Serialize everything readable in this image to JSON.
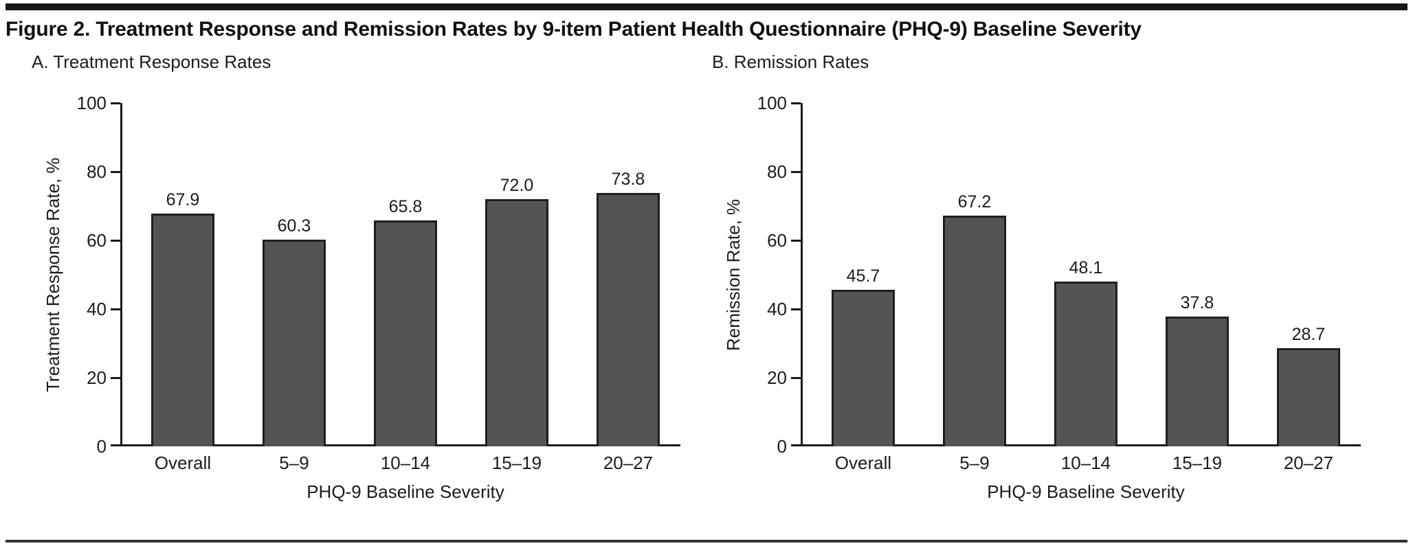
{
  "figure": {
    "title": "Figure 2. Treatment Response and Remission Rates by 9-item Patient Health Questionnaire (PHQ-9) Baseline Severity"
  },
  "colors": {
    "bar_fill": "#545454",
    "bar_border": "#1f1f1f",
    "axis": "#1a1a1a",
    "text": "#1c1c1c"
  },
  "chart_data": [
    {
      "type": "bar",
      "panel_label": "A. Treatment Response Rates",
      "categories": [
        "Overall",
        "5–9",
        "10–14",
        "15–19",
        "20–27"
      ],
      "values": [
        67.9,
        60.3,
        65.8,
        72.0,
        73.8
      ],
      "bar_labels": [
        "67.9",
        "60.3",
        "65.8",
        "72.0",
        "73.8"
      ],
      "xlabel": "PHQ-9 Baseline Severity",
      "ylabel": "Treatment Response Rate, %",
      "ylim": [
        0,
        100
      ],
      "yticks": [
        0,
        20,
        40,
        60,
        80,
        100
      ],
      "grid": false,
      "legend": null
    },
    {
      "type": "bar",
      "panel_label": "B. Remission Rates",
      "categories": [
        "Overall",
        "5–9",
        "10–14",
        "15–19",
        "20–27"
      ],
      "values": [
        45.7,
        67.2,
        48.1,
        37.8,
        28.7
      ],
      "bar_labels": [
        "45.7",
        "67.2",
        "48.1",
        "37.8",
        "28.7"
      ],
      "xlabel": "PHQ-9 Baseline Severity",
      "ylabel": "Remission Rate, %",
      "ylim": [
        0,
        100
      ],
      "yticks": [
        0,
        20,
        40,
        60,
        80,
        100
      ],
      "grid": false,
      "legend": null
    }
  ]
}
